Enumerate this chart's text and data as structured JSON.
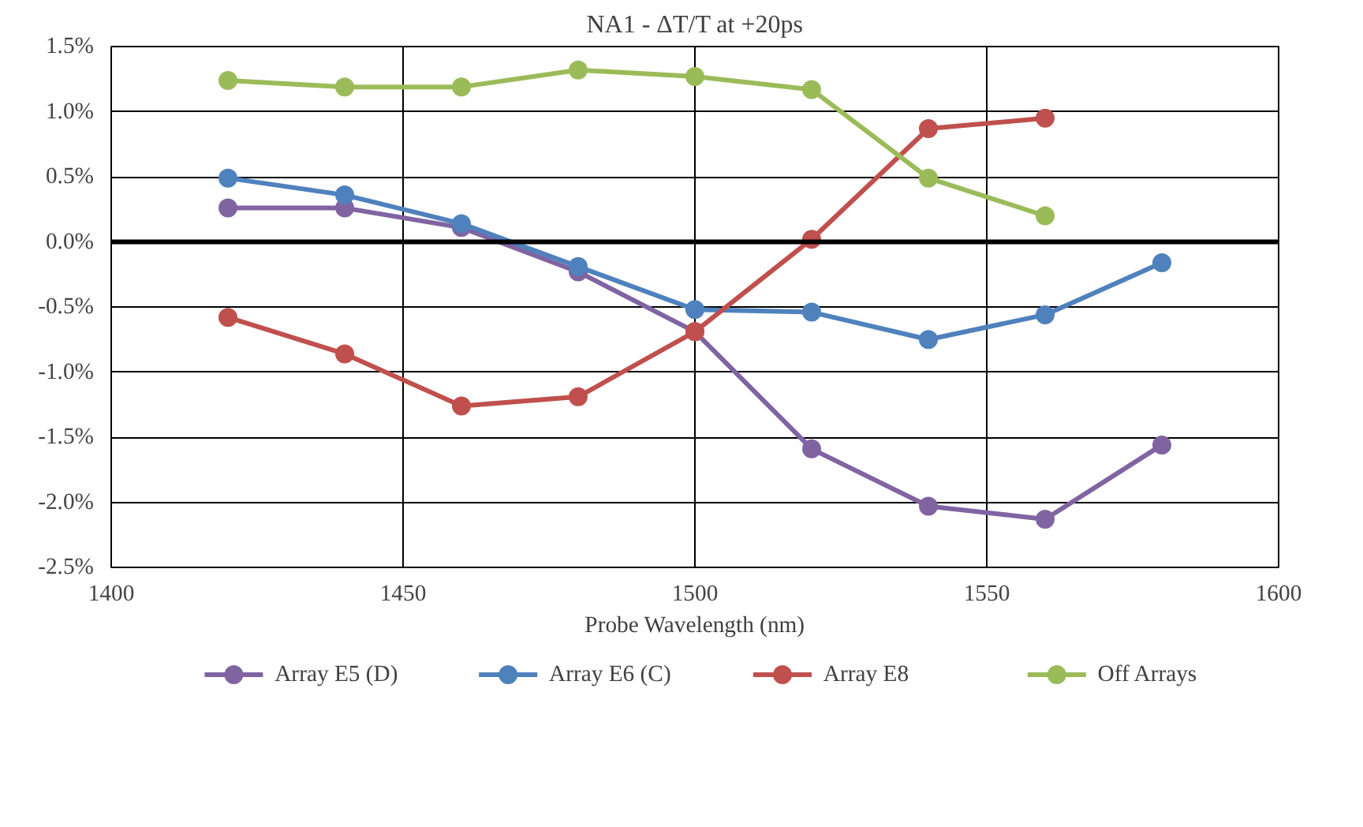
{
  "chart_data": {
    "type": "line",
    "title": "NA1 - ΔT/T at +20ps",
    "xlabel": "Probe Wavelength (nm)",
    "x": [
      1420,
      1440,
      1460,
      1480,
      1500,
      1520,
      1540,
      1560,
      1580
    ],
    "series": [
      {
        "name": "Array E5 (D)",
        "color": "#8064a2",
        "values": [
          0.26,
          0.26,
          0.11,
          -0.23,
          -0.69,
          -1.59,
          -2.03,
          -2.13,
          -1.56
        ]
      },
      {
        "name": "Array E6 (C)",
        "color": "#4f81bd",
        "values": [
          0.49,
          0.36,
          0.14,
          -0.19,
          -0.52,
          -0.54,
          -0.75,
          -0.56,
          -0.16
        ]
      },
      {
        "name": "Array E8",
        "color": "#c0504d",
        "values": [
          -0.58,
          -0.86,
          -1.26,
          -1.19,
          -0.69,
          0.02,
          0.87,
          0.95,
          null
        ]
      },
      {
        "name": "Off Arrays",
        "color": "#9bbb59",
        "values": [
          1.24,
          1.19,
          1.19,
          1.32,
          1.27,
          1.17,
          0.49,
          0.2,
          null
        ]
      }
    ],
    "xlim": [
      1400,
      1600
    ],
    "xticks": [
      1400,
      1450,
      1500,
      1550,
      1600
    ],
    "ylim": [
      -2.5,
      1.5
    ],
    "yticks": [
      {
        "value": -2.5,
        "label": "-2.5%"
      },
      {
        "value": -2.0,
        "label": "-2.0%"
      },
      {
        "value": -1.5,
        "label": "-1.5%"
      },
      {
        "value": -1.0,
        "label": "-1.0%"
      },
      {
        "value": -0.5,
        "label": "-0.5%"
      },
      {
        "value": 0,
        "label": "0.0%"
      },
      {
        "value": 0.5,
        "label": "0.5%"
      },
      {
        "value": 1.0,
        "label": "1.0%"
      },
      {
        "value": 1.5,
        "label": "1.5%"
      }
    ],
    "ref_lines": [
      {
        "axis": "y",
        "value": 0,
        "color": "#000000"
      }
    ],
    "grid": true,
    "legend": "bottom",
    "marker": "circle",
    "line_style": "solid"
  }
}
